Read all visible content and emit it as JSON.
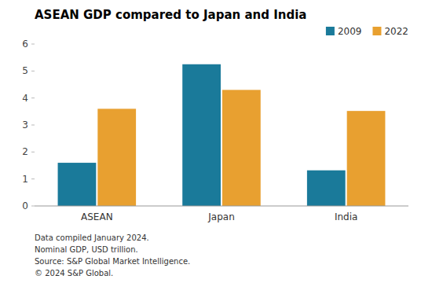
{
  "chart_data": {
    "type": "bar",
    "title": "ASEAN GDP compared to Japan and India",
    "categories": [
      "ASEAN",
      "Japan",
      "India"
    ],
    "series": [
      {
        "name": "2009",
        "color": "#1a7a9a",
        "values": [
          1.6,
          5.25,
          1.32
        ]
      },
      {
        "name": "2022",
        "color": "#e8a030",
        "values": [
          3.6,
          4.3,
          3.52
        ]
      }
    ],
    "ylim": [
      0,
      6
    ],
    "yticks": [
      0,
      1,
      2,
      3,
      4,
      5,
      6
    ],
    "grid": false,
    "legend": "upper right",
    "annotations": [
      "Data compiled January 2024.",
      "Nominal GDP, USD trillion.",
      "Source: S&P Global Market Intelligence.",
      "© 2024 S&P Global."
    ]
  }
}
